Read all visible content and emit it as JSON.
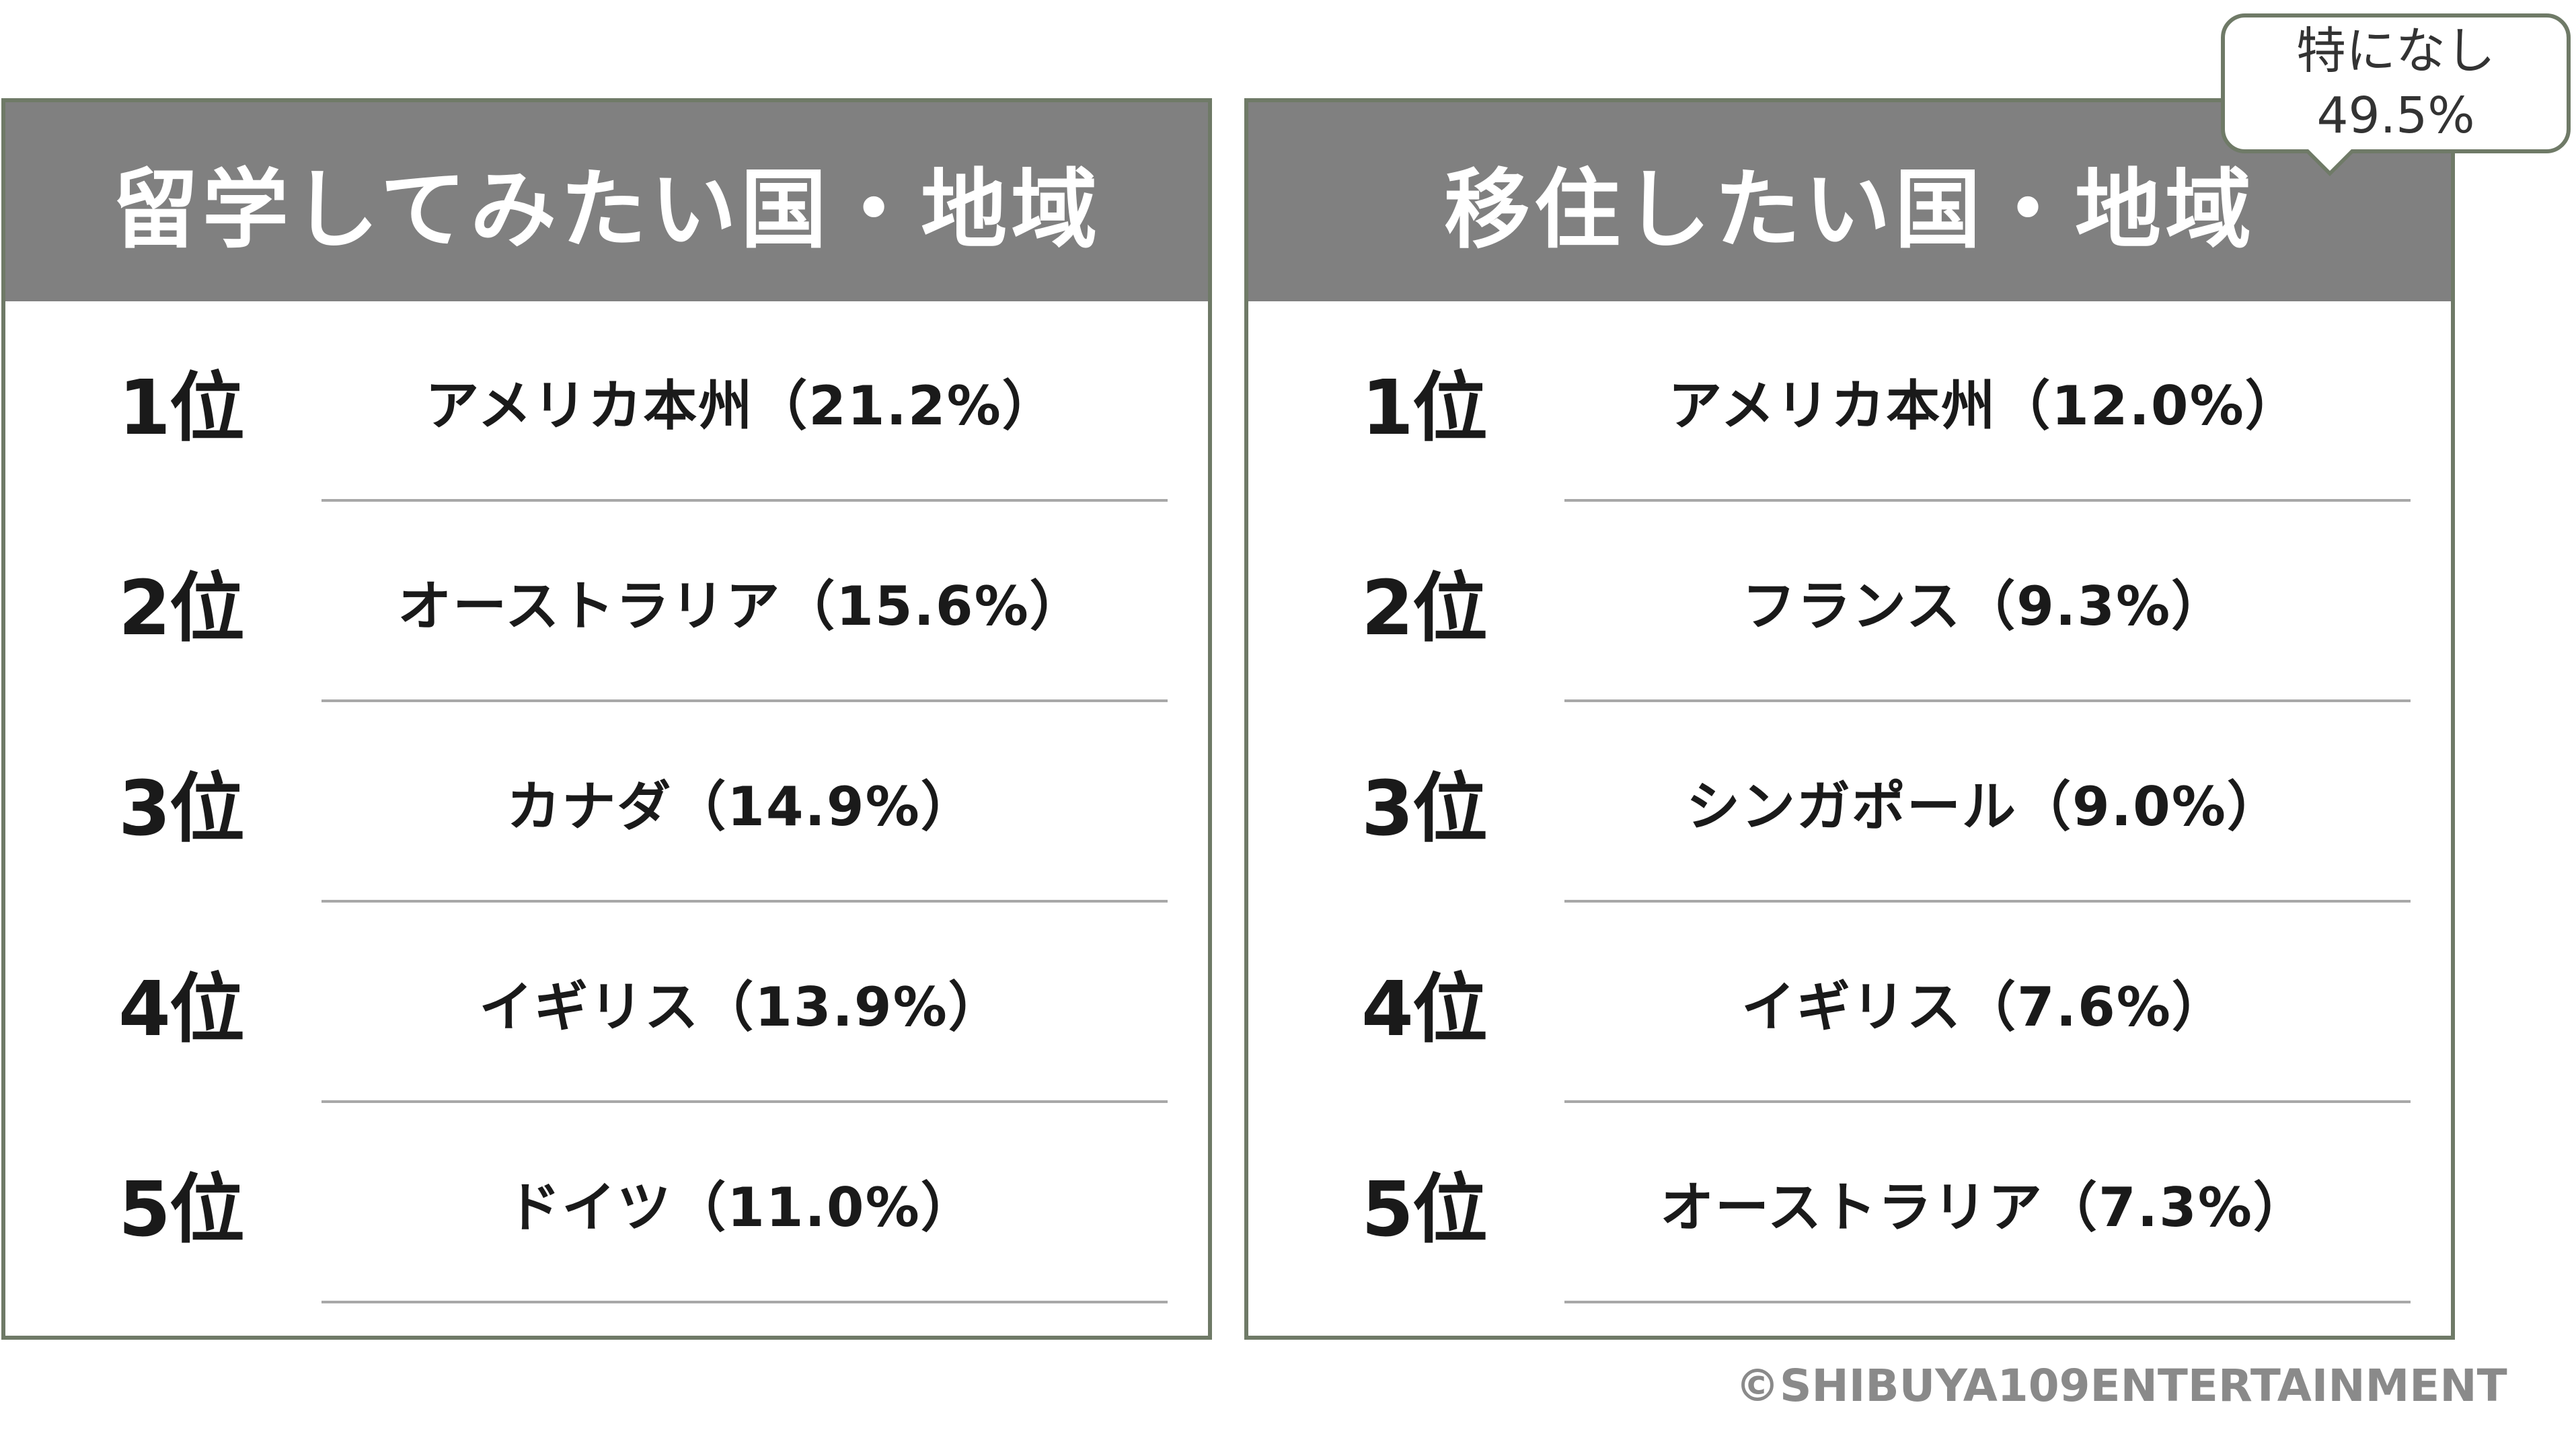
{
  "callout": {
    "line1": "特になし",
    "line2": "49.5%"
  },
  "copyright": "©SHIBUYA109ENTERTAINMENT",
  "chart_data": [
    {
      "type": "table",
      "title": "留学してみたい国・地域",
      "rows": [
        {
          "rank": "1位",
          "label": "アメリカ本州（21.2%）",
          "country": "アメリカ本州",
          "value": 21.2
        },
        {
          "rank": "2位",
          "label": "オーストラリア（15.6%）",
          "country": "オーストラリア",
          "value": 15.6
        },
        {
          "rank": "3位",
          "label": "カナダ（14.9%）",
          "country": "カナダ",
          "value": 14.9
        },
        {
          "rank": "4位",
          "label": "イギリス（13.9%）",
          "country": "イギリス",
          "value": 13.9
        },
        {
          "rank": "5位",
          "label": "ドイツ（11.0%）",
          "country": "ドイツ",
          "value": 11.0
        }
      ]
    },
    {
      "type": "table",
      "title": "移住したい国・地域",
      "rows": [
        {
          "rank": "1位",
          "label": "アメリカ本州（12.0%）",
          "country": "アメリカ本州",
          "value": 12.0
        },
        {
          "rank": "2位",
          "label": "フランス（9.3%）",
          "country": "フランス",
          "value": 9.3
        },
        {
          "rank": "3位",
          "label": "シンガポール（9.0%）",
          "country": "シンガポール",
          "value": 9.0
        },
        {
          "rank": "4位",
          "label": "イギリス（7.6%）",
          "country": "イギリス",
          "value": 7.6
        },
        {
          "rank": "5位",
          "label": "オーストラリア（7.3%）",
          "country": "オーストラリア",
          "value": 7.3
        }
      ]
    }
  ]
}
